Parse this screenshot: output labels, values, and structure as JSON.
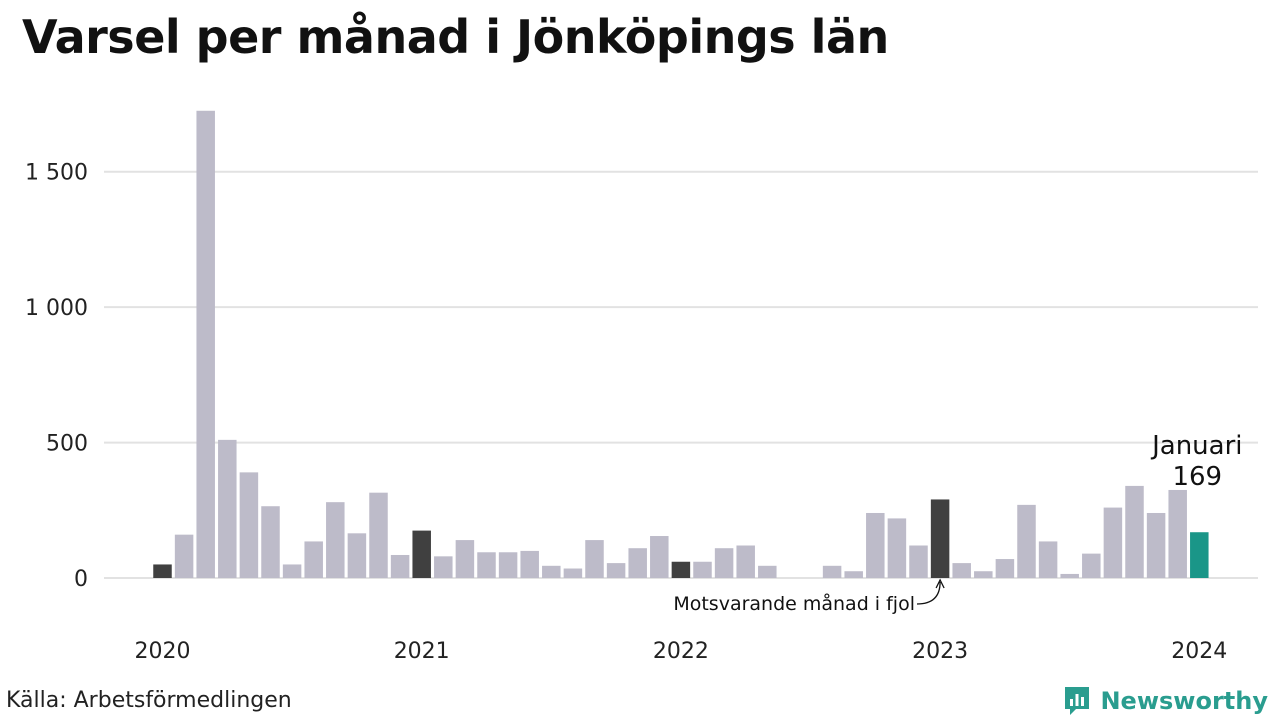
{
  "title": "Varsel per månad i Jönköpings län",
  "source": "Källa: Arbetsförmedlingen",
  "brand": {
    "name": "Newsworthy",
    "icon": "chart-logo-icon",
    "color": "#2a9d8f"
  },
  "chart_data": {
    "type": "bar",
    "title": "Varsel per månad i Jönköpings län",
    "xlabel": "",
    "ylabel": "",
    "ylim": [
      0,
      1750
    ],
    "grid": true,
    "y_ticks": [
      {
        "value": 0,
        "label": "0"
      },
      {
        "value": 500,
        "label": "500"
      },
      {
        "value": 1000,
        "label": "1 000"
      },
      {
        "value": 1500,
        "label": "1 500"
      }
    ],
    "x_ticks": [
      {
        "index": 0,
        "label": "2020"
      },
      {
        "index": 12,
        "label": "2021"
      },
      {
        "index": 24,
        "label": "2022"
      },
      {
        "index": 36,
        "label": "2023"
      },
      {
        "index": 48,
        "label": "2024"
      }
    ],
    "colors": {
      "default": "#bdbbc9",
      "same_month": "#404040",
      "current": "#1a9688"
    },
    "highlight_same_month": [
      0,
      12,
      24,
      36
    ],
    "highlight_current": 48,
    "values": [
      50,
      160,
      1725,
      510,
      390,
      265,
      50,
      135,
      280,
      165,
      315,
      85,
      175,
      80,
      140,
      95,
      95,
      100,
      45,
      35,
      140,
      55,
      110,
      155,
      60,
      60,
      110,
      120,
      45,
      0,
      0,
      45,
      25,
      240,
      220,
      120,
      290,
      55,
      25,
      70,
      270,
      135,
      15,
      90,
      260,
      340,
      240,
      325,
      169
    ],
    "annotations": [
      {
        "text": "Motsvarande månad i fjol",
        "target_index": 36
      },
      {
        "line1": "Januari",
        "line2": "169",
        "target_index": 48
      }
    ]
  }
}
